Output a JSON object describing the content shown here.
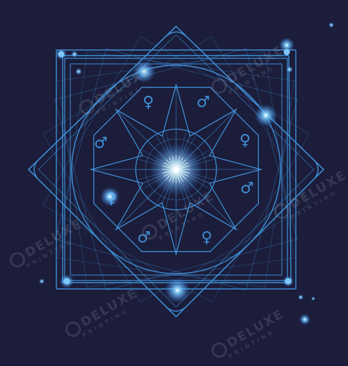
{
  "background_color": "#1b1d3a",
  "line_color": "#3f8fd6",
  "glow_color": "#6fc7ff",
  "watermark": {
    "brand": "DELUXE",
    "tagline": "PRINTING"
  },
  "symbols": {
    "male": "♂",
    "female": "♀"
  }
}
